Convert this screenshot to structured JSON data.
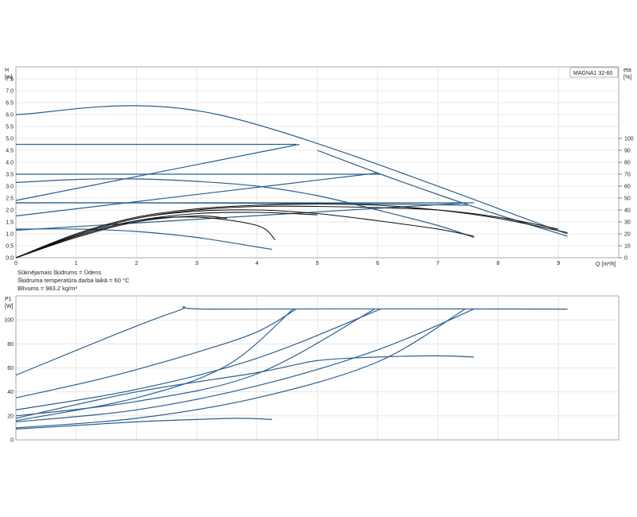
{
  "colors": {
    "pump_curve": "#2a5f8f",
    "efficiency_curve": "#111111"
  },
  "model_label": "MAGNA1 32-60",
  "notes": [
    "Sūknējamais šķidrums = Ūdens",
    "Šķidruma temperatūra darba laikā = 60 °C",
    "Blīvums = 983.2 kg/m³"
  ],
  "chart_data": [
    {
      "type": "line",
      "id": "head",
      "ylabel": [
        "H",
        "[m]"
      ],
      "y2label": [
        "eta",
        "[%]"
      ],
      "xlabel": "Q [m³/h]",
      "xlim": [
        0,
        10
      ],
      "ylim": [
        0,
        8
      ],
      "y2lim": [
        0,
        160
      ],
      "xticks": [
        0,
        1,
        2,
        3,
        4,
        5,
        6,
        7,
        8,
        9
      ],
      "yticks": [
        0.0,
        0.5,
        1.0,
        1.5,
        2.0,
        2.5,
        3.0,
        3.5,
        4.0,
        4.5,
        5.0,
        5.5,
        6.0,
        6.5,
        7.0,
        7.5
      ],
      "ytick_labels": [
        "0.0",
        "0.5",
        "1.0",
        "1.5",
        "2.0",
        "2.5",
        "3.0",
        "3.5",
        "4.0",
        "4.5",
        "5.0",
        "5.5",
        "6.0",
        "6.5",
        "7.0",
        "7.5"
      ],
      "y2ticks": [
        0,
        10,
        20,
        30,
        40,
        50,
        60,
        70,
        80,
        90,
        100
      ],
      "grid": true,
      "series": [
        {
          "group": "constant_pressure",
          "points": [
            [
              0,
              6.0
            ],
            [
              3.35,
              6.0
            ],
            [
              9.15,
              1.0
            ]
          ]
        },
        {
          "group": "constant_pressure",
          "points": [
            [
              0,
              4.75
            ],
            [
              4.65,
              4.75
            ]
          ]
        },
        {
          "group": "constant_pressure",
          "points": [
            [
              0,
              3.5
            ],
            [
              6.05,
              3.5
            ]
          ]
        },
        {
          "group": "constant_pressure",
          "points": [
            [
              0,
              2.3
            ],
            [
              7.6,
              2.3
            ]
          ]
        },
        {
          "group": "proportional_pressure",
          "points": [
            [
              0,
              2.4
            ],
            [
              4.7,
              4.75
            ]
          ]
        },
        {
          "group": "proportional_pressure",
          "points": [
            [
              0,
              1.75
            ],
            [
              6.0,
              3.55
            ]
          ]
        },
        {
          "group": "proportional_pressure",
          "points": [
            [
              0,
              1.15
            ],
            [
              7.5,
              2.3
            ]
          ]
        },
        {
          "group": "max_curve",
          "points": [
            [
              5.0,
              4.5
            ],
            [
              6.0,
              3.55
            ],
            [
              7.0,
              2.65
            ],
            [
              8.0,
              1.8
            ],
            [
              9.15,
              0.9
            ]
          ]
        },
        {
          "group": "constant_curve",
          "points": [
            [
              0,
              3.15
            ],
            [
              1.0,
              3.28
            ],
            [
              2.0,
              3.3
            ],
            [
              3.0,
              3.2
            ],
            [
              4.0,
              3.0
            ],
            [
              5.0,
              2.6
            ],
            [
              6.0,
              2.0
            ],
            [
              7.0,
              1.35
            ],
            [
              7.6,
              0.85
            ]
          ]
        },
        {
          "group": "constant_curve",
          "points": [
            [
              0,
              1.2
            ],
            [
              1.0,
              1.2
            ],
            [
              2.0,
              1.1
            ],
            [
              3.0,
              0.85
            ],
            [
              4.0,
              0.45
            ],
            [
              4.25,
              0.35
            ]
          ]
        },
        {
          "group": "constant_curve",
          "points": [
            [
              0,
              2.3
            ],
            [
              2.0,
              2.3
            ],
            [
              4.0,
              2.28
            ],
            [
              6.0,
              2.25
            ],
            [
              7.5,
              2.2
            ]
          ]
        }
      ],
      "eta_series": [
        {
          "points": [
            [
              0,
              0
            ],
            [
              1.0,
              18
            ],
            [
              2.0,
              31
            ],
            [
              3.0,
              34
            ],
            [
              4.0,
              27
            ],
            [
              4.3,
              15
            ]
          ]
        },
        {
          "points": [
            [
              0,
              0
            ],
            [
              1.0,
              19
            ],
            [
              2.0,
              33
            ],
            [
              3.0,
              39
            ],
            [
              4.0,
              40
            ],
            [
              5.0,
              37
            ],
            [
              6.0,
              31
            ],
            [
              7.0,
              24
            ],
            [
              7.6,
              18
            ]
          ]
        },
        {
          "points": [
            [
              0,
              0
            ],
            [
              1.0,
              20
            ],
            [
              2.0,
              34
            ],
            [
              3.0,
              41
            ],
            [
              4.0,
              44
            ],
            [
              5.0,
              45
            ],
            [
              6.0,
              44
            ],
            [
              7.0,
              40
            ],
            [
              8.0,
              33
            ],
            [
              9.15,
              21
            ]
          ]
        },
        {
          "points": [
            [
              0,
              0
            ],
            [
              1.0,
              19
            ],
            [
              2.0,
              33
            ],
            [
              3.0,
              40
            ],
            [
              4.0,
              43
            ],
            [
              5.0,
              43
            ],
            [
              6.0,
              42
            ],
            [
              7.0,
              40
            ],
            [
              8.0,
              34
            ],
            [
              9.0,
              24
            ]
          ]
        },
        {
          "points": [
            [
              0,
              0
            ],
            [
              1.0,
              18
            ],
            [
              2.0,
              31
            ],
            [
              3.0,
              37
            ],
            [
              4.0,
              38
            ],
            [
              5.0,
              36
            ]
          ]
        },
        {
          "points": [
            [
              0,
              0
            ],
            [
              1.0,
              17
            ],
            [
              2.0,
              30
            ],
            [
              3.0,
              35
            ],
            [
              3.5,
              33
            ]
          ]
        }
      ]
    },
    {
      "type": "line",
      "id": "power",
      "ylabel": [
        "P1",
        "[W]"
      ],
      "xlim": [
        0,
        10
      ],
      "ylim": [
        0,
        120
      ],
      "yticks": [
        0,
        20,
        40,
        60,
        80,
        100
      ],
      "grid": true,
      "series": [
        {
          "points": [
            [
              0,
              54
            ],
            [
              2.6,
              106
            ],
            [
              3.35,
              109
            ],
            [
              9.15,
              109
            ]
          ]
        },
        {
          "points": [
            [
              0,
              35
            ],
            [
              1.5,
              52
            ],
            [
              3.0,
              73
            ],
            [
              4.0,
              90
            ],
            [
              4.65,
              109
            ]
          ]
        },
        {
          "points": [
            [
              0,
              16
            ],
            [
              2.0,
              35
            ],
            [
              3.5,
              62
            ],
            [
              4.6,
              109
            ]
          ]
        },
        {
          "points": [
            [
              0,
              25
            ],
            [
              2.0,
              42
            ],
            [
              4.0,
              68
            ],
            [
              6.05,
              109
            ]
          ]
        },
        {
          "points": [
            [
              0,
              20
            ],
            [
              2.0,
              32
            ],
            [
              4.0,
              55
            ],
            [
              5.95,
              109
            ]
          ]
        },
        {
          "points": [
            [
              0,
              15
            ],
            [
              2.0,
              25
            ],
            [
              4.0,
              45
            ],
            [
              6.0,
              75
            ],
            [
              7.6,
              109
            ]
          ]
        },
        {
          "points": [
            [
              0,
              10
            ],
            [
              2.0,
              18
            ],
            [
              4.0,
              35
            ],
            [
              6.0,
              65
            ],
            [
              7.45,
              109
            ]
          ]
        },
        {
          "points": [
            [
              0,
              18
            ],
            [
              2.0,
              40
            ],
            [
              4.0,
              56
            ],
            [
              5.0,
              66
            ],
            [
              6.0,
              69
            ],
            [
              7.0,
              70
            ],
            [
              7.6,
              69
            ]
          ]
        },
        {
          "points": [
            [
              0,
              9
            ],
            [
              1.0,
              12
            ],
            [
              2.0,
              15
            ],
            [
              3.0,
              17
            ],
            [
              3.7,
              18
            ],
            [
              4.25,
              17
            ]
          ]
        }
      ]
    }
  ]
}
